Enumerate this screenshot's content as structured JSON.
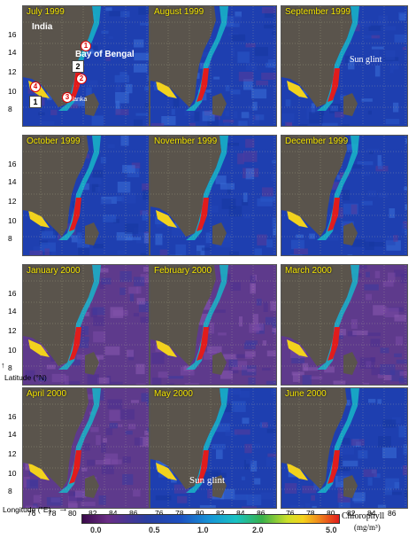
{
  "panels": [
    {
      "title": "July 1999"
    },
    {
      "title": "August 1999"
    },
    {
      "title": "September 1999"
    },
    {
      "title": "October 1999"
    },
    {
      "title": "November 1999"
    },
    {
      "title": "December 1999"
    },
    {
      "title": "January 2000"
    },
    {
      "title": "February 2000"
    },
    {
      "title": "March 2000"
    },
    {
      "title": "April 2000"
    },
    {
      "title": "May 2000"
    },
    {
      "title": "June 2000"
    }
  ],
  "annotations": {
    "india": "India",
    "bay_of_bengal": "Bay of Bengal",
    "srilanka": "Srilanka",
    "sun_glint_sep": "Sun glint",
    "sun_glint_may": "Sun glint",
    "markers_circle": [
      "1",
      "2",
      "3",
      "4"
    ],
    "markers_square": [
      "1",
      "2"
    ]
  },
  "axes": {
    "ylabel": "Latitude (°N)",
    "xlabel": "Longitude (°E)",
    "yticks_top": [
      "16",
      "14",
      "12",
      "10",
      "8"
    ],
    "yticks_other": [
      "16",
      "14",
      "12",
      "10",
      "8"
    ],
    "xticks": [
      "76",
      "78",
      "80",
      "82",
      "84",
      "86"
    ]
  },
  "colorbar": {
    "label_line1": "Chlorophyll",
    "label_line2": "(mg/m³)",
    "ticks": [
      "0.0",
      "0.5",
      "1.0",
      "2.0",
      "5.0"
    ]
  },
  "colors": {
    "title_yellow": "#f5e600",
    "land": "#5a544c",
    "ocean_blue": "#1e3fb0",
    "ocean_purple": "#5e3a8c",
    "bloom_red": "#e11c1c"
  }
}
